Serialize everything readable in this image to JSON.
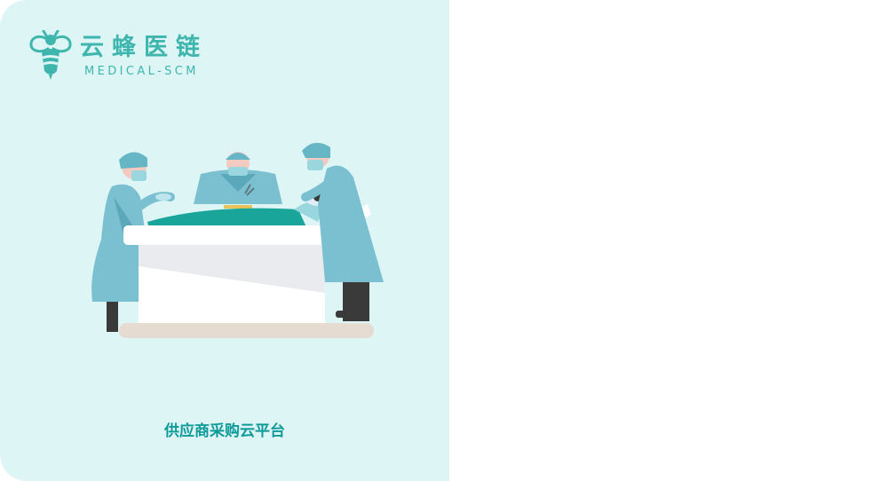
{
  "brand": {
    "name": "云蜂医链",
    "subtitle": "MEDICAL-SCM",
    "logo_icon": "bee-icon"
  },
  "tagline": "供应商采购云平台",
  "illustration": {
    "subject": "surgery-team-icon"
  },
  "colors": {
    "panel_bg": "#ddf5f5",
    "brand": "#3fb6ad",
    "tagline": "#0f9a9a",
    "right_bg": "#ffffff"
  }
}
